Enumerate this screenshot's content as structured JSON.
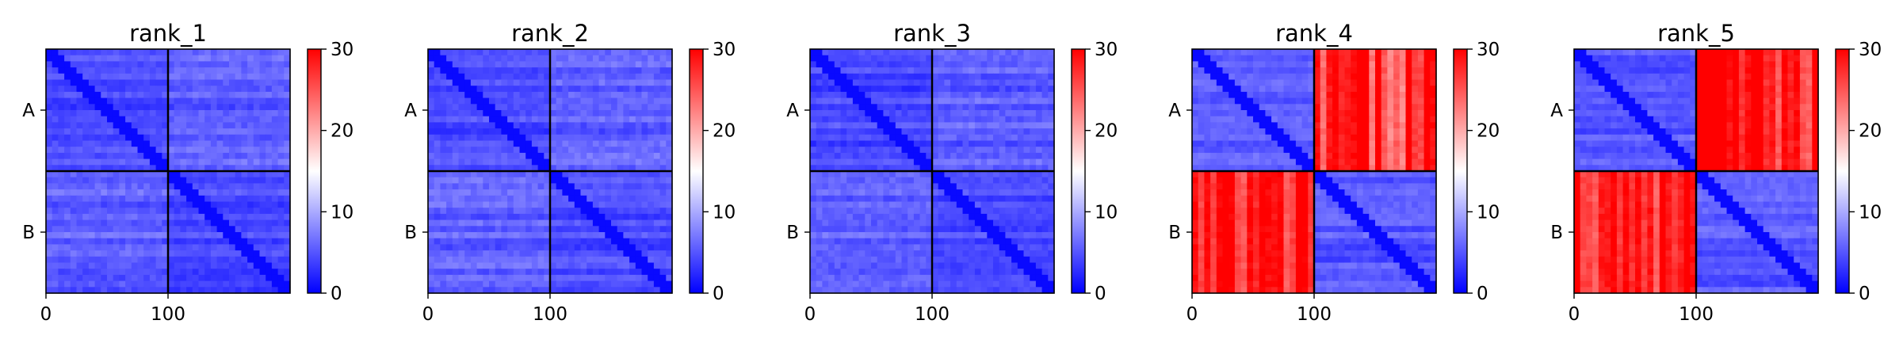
{
  "chart_data": [
    {
      "type": "heatmap",
      "title": "rank_1",
      "xticks": [
        0,
        100
      ],
      "ytick_labels": [
        "A",
        "B"
      ],
      "chain_boundary": 100,
      "length": 200,
      "colorbar": {
        "ticks": [
          0,
          10,
          20,
          30
        ],
        "range": [
          0,
          30
        ],
        "colors": [
          "#0000ff",
          "#ffffff",
          "#ff0000"
        ]
      },
      "blocks": {
        "intra": 2,
        "inter": 3
      }
    },
    {
      "type": "heatmap",
      "title": "rank_2",
      "xticks": [
        0,
        100
      ],
      "ytick_labels": [
        "A",
        "B"
      ],
      "chain_boundary": 100,
      "length": 200,
      "colorbar": {
        "ticks": [
          0,
          10,
          20,
          30
        ],
        "range": [
          0,
          30
        ],
        "colors": [
          "#0000ff",
          "#ffffff",
          "#ff0000"
        ]
      },
      "blocks": {
        "intra": 2,
        "inter": 3
      }
    },
    {
      "type": "heatmap",
      "title": "rank_3",
      "xticks": [
        0,
        100
      ],
      "ytick_labels": [
        "A",
        "B"
      ],
      "chain_boundary": 100,
      "length": 200,
      "colorbar": {
        "ticks": [
          0,
          10,
          20,
          30
        ],
        "range": [
          0,
          30
        ],
        "colors": [
          "#0000ff",
          "#ffffff",
          "#ff0000"
        ]
      },
      "blocks": {
        "intra": 2,
        "inter": 3
      }
    },
    {
      "type": "heatmap",
      "title": "rank_4",
      "xticks": [
        0,
        100
      ],
      "ytick_labels": [
        "A",
        "B"
      ],
      "chain_boundary": 100,
      "length": 200,
      "colorbar": {
        "ticks": [
          0,
          10,
          20,
          30
        ],
        "range": [
          0,
          30
        ],
        "colors": [
          "#0000ff",
          "#ffffff",
          "#ff0000"
        ]
      },
      "blocks": {
        "intra": 3,
        "inter": 26
      }
    },
    {
      "type": "heatmap",
      "title": "rank_5",
      "xticks": [
        0,
        100
      ],
      "ytick_labels": [
        "A",
        "B"
      ],
      "chain_boundary": 100,
      "length": 200,
      "colorbar": {
        "ticks": [
          0,
          10,
          20,
          30
        ],
        "range": [
          0,
          30
        ],
        "colors": [
          "#0000ff",
          "#ffffff",
          "#ff0000"
        ]
      },
      "blocks": {
        "intra": 3,
        "inter": 28
      }
    }
  ]
}
